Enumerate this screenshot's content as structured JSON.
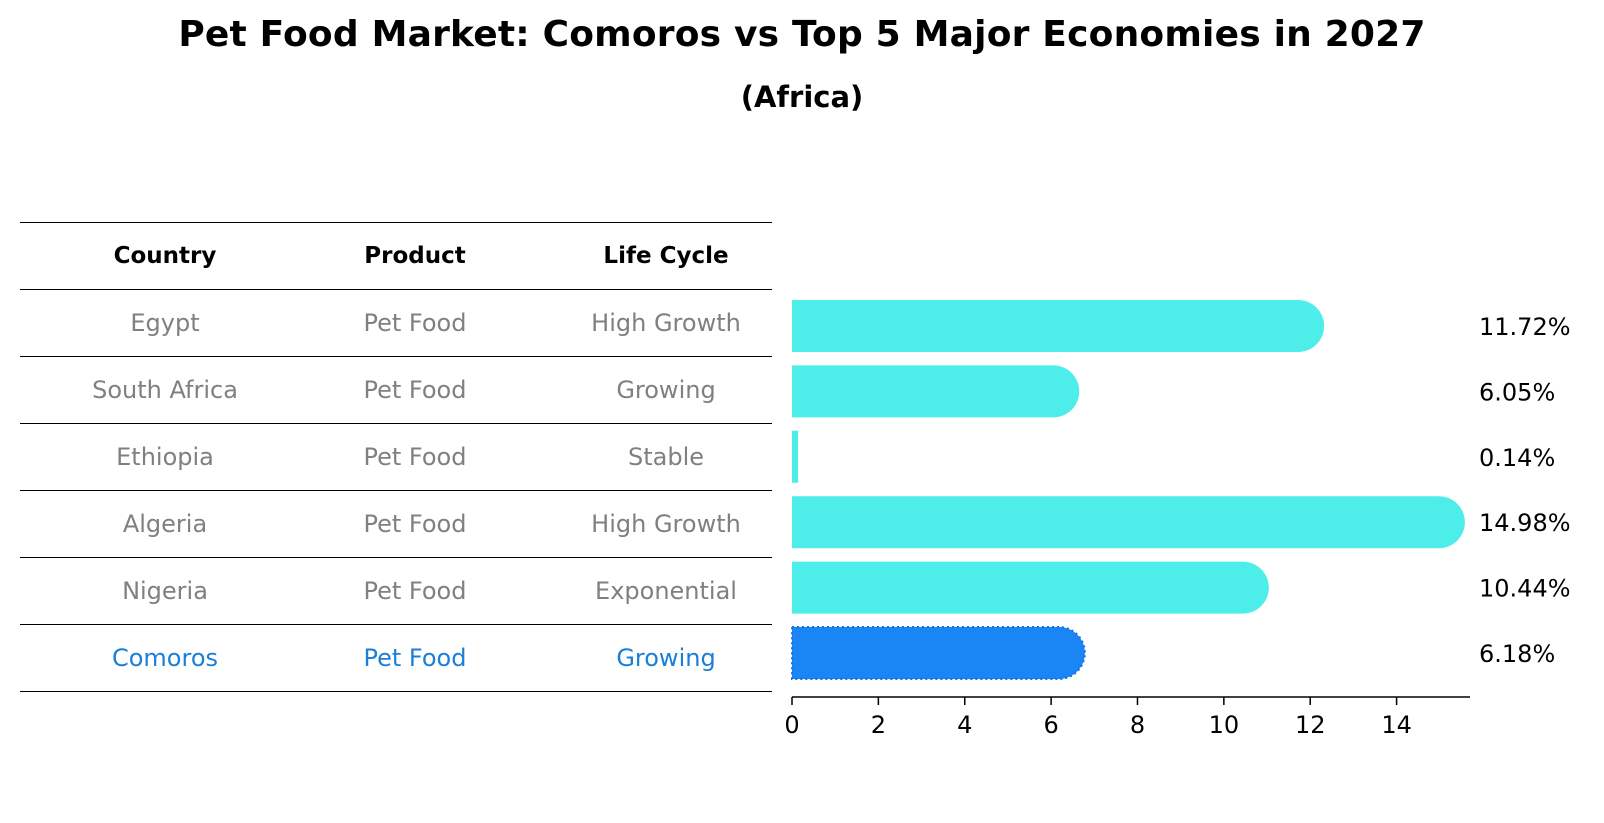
{
  "title": "Pet Food Market: Comoros vs Top 5 Major Economies in 2027",
  "subtitle": "(Africa)",
  "table": {
    "headers": [
      "Country",
      "Product",
      "Life Cycle"
    ],
    "rows": [
      [
        "Egypt",
        "Pet Food",
        "High Growth"
      ],
      [
        "South Africa",
        "Pet Food",
        "Growing"
      ],
      [
        "Ethiopia",
        "Pet Food",
        "Stable"
      ],
      [
        "Algeria",
        "Pet Food",
        "High Growth"
      ],
      [
        "Nigeria",
        "Pet Food",
        "Exponential"
      ],
      [
        "Comoros",
        "Pet Food",
        "Growing"
      ]
    ]
  },
  "colors": {
    "bar": "#4deeea",
    "highlight": "#1a85f5",
    "highlight_text": "#1a7fd8",
    "muted_text": "#808080"
  },
  "chart_data": {
    "type": "bar",
    "orientation": "horizontal",
    "categories": [
      "Egypt",
      "South Africa",
      "Ethiopia",
      "Algeria",
      "Nigeria",
      "Comoros"
    ],
    "values": [
      11.72,
      6.05,
      0.14,
      14.98,
      10.44,
      6.18
    ],
    "value_labels": [
      "11.72%",
      "6.05%",
      "0.14%",
      "14.98%",
      "10.44%",
      "6.18%"
    ],
    "highlight": "Comoros",
    "xlim": [
      0,
      15.7
    ],
    "xticks": [
      0,
      2,
      4,
      6,
      8,
      10,
      12,
      14
    ],
    "xlabel": "",
    "ylabel": ""
  }
}
